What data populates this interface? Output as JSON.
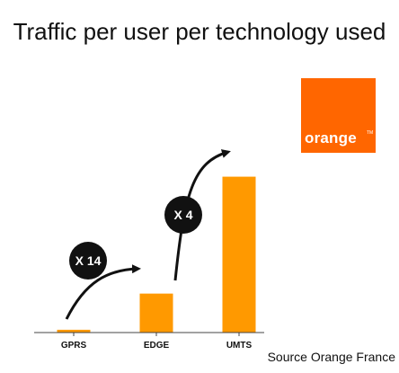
{
  "title": "Traffic per user per technology used",
  "source": "Source Orange France",
  "logo": {
    "text": "orange",
    "tm": "TM",
    "color": "#ff6600"
  },
  "colors": {
    "bar": "#ff9900",
    "badge": "#111111",
    "arrow": "#111111",
    "axis": "#444444"
  },
  "chart_data": {
    "type": "bar",
    "categories": [
      "GPRS",
      "EDGE",
      "UMTS"
    ],
    "values": [
      1,
      14,
      56
    ],
    "ylim": [
      0,
      62
    ],
    "xlabel": "",
    "ylabel": "",
    "grid": false,
    "annotations": [
      {
        "label": "X 14",
        "from": "GPRS",
        "to": "EDGE"
      },
      {
        "label": "X 4",
        "from": "EDGE",
        "to": "UMTS"
      }
    ]
  }
}
